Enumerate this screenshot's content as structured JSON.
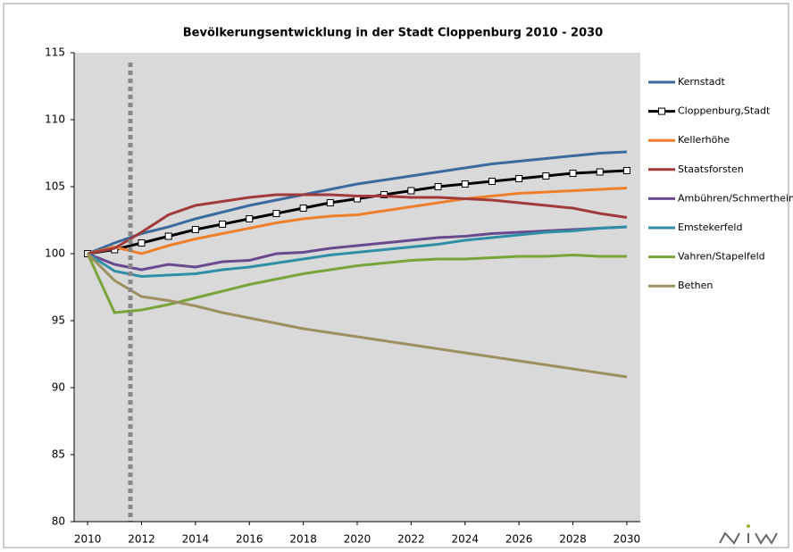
{
  "chart_data": {
    "type": "line",
    "title": "Bevölkerungsentwicklung in der Stadt Cloppenburg 2010 - 2030",
    "x": [
      2010,
      2011,
      2012,
      2013,
      2014,
      2015,
      2016,
      2017,
      2018,
      2019,
      2020,
      2021,
      2022,
      2023,
      2024,
      2025,
      2026,
      2027,
      2028,
      2029,
      2030
    ],
    "xlim": [
      2009.5,
      2030.5
    ],
    "xticks": [
      2010,
      2012,
      2014,
      2016,
      2018,
      2020,
      2022,
      2024,
      2026,
      2028,
      2030
    ],
    "ylim": [
      80,
      115
    ],
    "yticks": [
      80,
      85,
      90,
      95,
      100,
      105,
      110,
      115
    ],
    "grid": false,
    "legend": "right",
    "series": [
      {
        "name": "Kernstadt",
        "color": "#3b6a9c",
        "values": [
          100,
          100.8,
          101.5,
          102.0,
          102.6,
          103.1,
          103.6,
          104.0,
          104.4,
          104.8,
          105.2,
          105.5,
          105.8,
          106.1,
          106.4,
          106.7,
          106.9,
          107.1,
          107.3,
          107.5,
          107.6
        ]
      },
      {
        "name": "Cloppenburg,Stadt",
        "color": "#000000",
        "marker": "square",
        "values": [
          100,
          100.3,
          100.8,
          101.3,
          101.8,
          102.2,
          102.6,
          103.0,
          103.4,
          103.8,
          104.1,
          104.4,
          104.7,
          105.0,
          105.2,
          105.4,
          105.6,
          105.8,
          106.0,
          106.1,
          106.2
        ]
      },
      {
        "name": "Kellerhöhe",
        "color": "#f07f2a",
        "values": [
          100,
          100.5,
          100.0,
          100.6,
          101.1,
          101.5,
          101.9,
          102.3,
          102.6,
          102.8,
          102.9,
          103.2,
          103.5,
          103.8,
          104.1,
          104.3,
          104.5,
          104.6,
          104.7,
          104.8,
          104.9
        ]
      },
      {
        "name": "Staatsforsten",
        "color": "#a13a3a",
        "values": [
          100,
          100.4,
          101.6,
          102.9,
          103.6,
          103.9,
          104.2,
          104.4,
          104.4,
          104.4,
          104.3,
          104.3,
          104.2,
          104.2,
          104.1,
          104.0,
          103.8,
          103.6,
          103.4,
          103.0,
          102.7
        ]
      },
      {
        "name": "Ambühren/Schmertheim",
        "color": "#6a4a8e",
        "values": [
          100,
          99.2,
          98.8,
          99.2,
          99.0,
          99.4,
          99.5,
          100.0,
          100.1,
          100.4,
          100.6,
          100.8,
          101.0,
          101.2,
          101.3,
          101.5,
          101.6,
          101.7,
          101.8,
          101.9,
          102.0
        ]
      },
      {
        "name": "Emstekerfeld",
        "color": "#2e8fa6",
        "values": [
          100,
          98.7,
          98.3,
          98.4,
          98.5,
          98.8,
          99.0,
          99.3,
          99.6,
          99.9,
          100.1,
          100.3,
          100.5,
          100.7,
          101.0,
          101.2,
          101.4,
          101.6,
          101.7,
          101.9,
          102.0
        ]
      },
      {
        "name": "Vahren/Stapelfeld",
        "color": "#7aa33a",
        "values": [
          100,
          95.6,
          95.8,
          96.2,
          96.7,
          97.2,
          97.7,
          98.1,
          98.5,
          98.8,
          99.1,
          99.3,
          99.5,
          99.6,
          99.6,
          99.7,
          99.8,
          99.8,
          99.9,
          99.8,
          99.8
        ]
      },
      {
        "name": "Bethen",
        "color": "#9c9060",
        "values": [
          100,
          98.0,
          96.8,
          96.5,
          96.1,
          95.6,
          95.2,
          94.8,
          94.4,
          94.1,
          93.8,
          93.5,
          93.2,
          92.9,
          92.6,
          92.3,
          92.0,
          91.7,
          91.4,
          91.1,
          90.8
        ]
      }
    ]
  }
}
